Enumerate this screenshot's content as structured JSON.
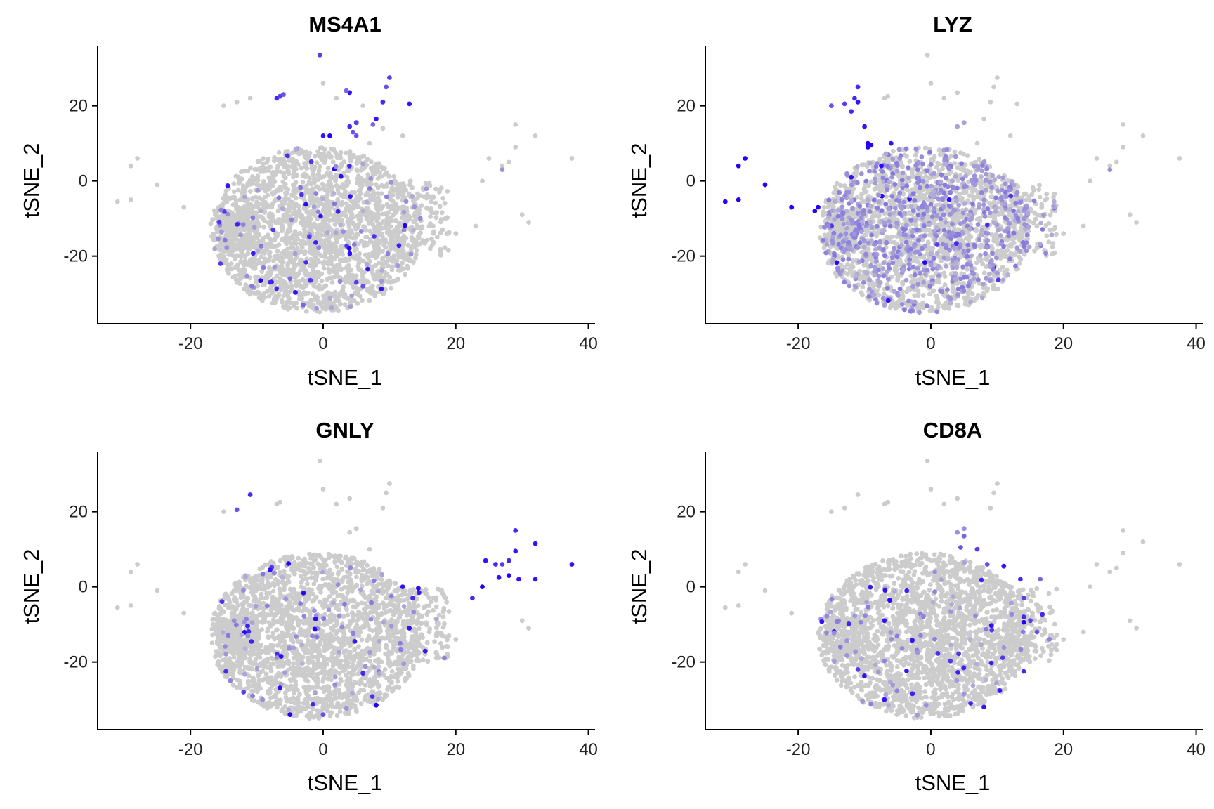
{
  "chart_data": [
    {
      "type": "scatter",
      "title": "MS4A1",
      "xlabel": "tSNE_1",
      "ylabel": "tSNE_2",
      "xlim": [
        -34,
        41
      ],
      "ylim": [
        -38,
        36
      ],
      "xticks": [
        -20,
        0,
        20,
        40
      ],
      "yticks": [
        -20,
        0,
        20
      ],
      "grid": false,
      "legend": "none",
      "colors": {
        "low": "#cccccc",
        "high": "#2200ff"
      },
      "cluster": {
        "center": [
          -1,
          -13
        ],
        "radius": [
          16,
          22
        ]
      },
      "outliers": [
        {
          "x": -31,
          "y": -5.5,
          "v": 0
        },
        {
          "x": -29,
          "y": -5,
          "v": 0
        },
        {
          "x": -29,
          "y": 4,
          "v": 0
        },
        {
          "x": -28,
          "y": 6,
          "v": 0
        },
        {
          "x": -25,
          "y": -1,
          "v": 0
        },
        {
          "x": -21,
          "y": -7,
          "v": 0
        },
        {
          "x": -15,
          "y": 20,
          "v": 0
        },
        {
          "x": -13,
          "y": 21,
          "v": 0
        },
        {
          "x": -11,
          "y": 22,
          "v": 0
        },
        {
          "x": -7,
          "y": 22,
          "v": 0.8
        },
        {
          "x": -6.5,
          "y": 22.5,
          "v": 0.7
        },
        {
          "x": -6,
          "y": 23,
          "v": 0.6
        },
        {
          "x": -0.5,
          "y": 33.5,
          "v": 0.7
        },
        {
          "x": 0,
          "y": 26,
          "v": 0
        },
        {
          "x": 2,
          "y": 22,
          "v": 0
        },
        {
          "x": 4,
          "y": 23.5,
          "v": 0.9
        },
        {
          "x": 3.5,
          "y": 24,
          "v": 0.5
        },
        {
          "x": 6,
          "y": 20,
          "v": 0
        },
        {
          "x": 10,
          "y": 27.5,
          "v": 0.7
        },
        {
          "x": 9.5,
          "y": 25,
          "v": 0.6
        },
        {
          "x": 13,
          "y": 20.5,
          "v": 0.9
        },
        {
          "x": 9,
          "y": 21,
          "v": 0.8
        },
        {
          "x": 8,
          "y": 16.5,
          "v": 0.9
        },
        {
          "x": 7.5,
          "y": 15,
          "v": 0.5
        },
        {
          "x": 5,
          "y": 15.5,
          "v": 0.7
        },
        {
          "x": 4,
          "y": 14.5,
          "v": 0.8
        },
        {
          "x": 4.5,
          "y": 13,
          "v": 0.6
        },
        {
          "x": 0,
          "y": 12,
          "v": 0.9
        },
        {
          "x": 1,
          "y": 12,
          "v": 1
        },
        {
          "x": 5,
          "y": 12,
          "v": 0.6
        },
        {
          "x": 7,
          "y": 10,
          "v": 0
        },
        {
          "x": 9,
          "y": 14,
          "v": 0
        },
        {
          "x": 12,
          "y": 12,
          "v": 0
        },
        {
          "x": 16,
          "y": -12,
          "v": 0
        },
        {
          "x": 18,
          "y": -13,
          "v": 0
        },
        {
          "x": 20,
          "y": -14,
          "v": 0
        },
        {
          "x": 23,
          "y": -12,
          "v": 0
        },
        {
          "x": 24,
          "y": 0,
          "v": 0
        },
        {
          "x": 25,
          "y": 6,
          "v": 0
        },
        {
          "x": 27,
          "y": 4,
          "v": 0
        },
        {
          "x": 28,
          "y": 5,
          "v": 0
        },
        {
          "x": 29,
          "y": 9,
          "v": 0
        },
        {
          "x": 29,
          "y": 15,
          "v": 0
        },
        {
          "x": 30,
          "y": -9,
          "v": 0
        },
        {
          "x": 31,
          "y": -11,
          "v": 0
        },
        {
          "x": 32,
          "y": 12,
          "v": 0
        },
        {
          "x": 37.5,
          "y": 6,
          "v": 0
        },
        {
          "x": 27,
          "y": 3,
          "v": 0.3
        },
        {
          "x": -8,
          "y": -27,
          "v": 0.8
        },
        {
          "x": 5,
          "y": -27,
          "v": 0.7
        },
        {
          "x": 6,
          "y": -28,
          "v": 0.6
        },
        {
          "x": -5,
          "y": -26,
          "v": 0.5
        },
        {
          "x": -3,
          "y": -33,
          "v": 0.5
        }
      ],
      "seed": 11,
      "hot_fraction": 0.012
    },
    {
      "type": "scatter",
      "title": "LYZ",
      "xlabel": "tSNE_1",
      "ylabel": "tSNE_2",
      "xlim": [
        -34,
        41
      ],
      "ylim": [
        -38,
        36
      ],
      "xticks": [
        -20,
        0,
        20,
        40
      ],
      "yticks": [
        -20,
        0,
        20
      ],
      "grid": false,
      "legend": "none",
      "colors": {
        "low": "#cccccc",
        "high": "#2200ff"
      },
      "cluster": {
        "center": [
          -1,
          -13
        ],
        "radius": [
          16,
          22
        ]
      },
      "outliers": [
        {
          "x": -31,
          "y": -5.5,
          "v": 1
        },
        {
          "x": -29,
          "y": -5,
          "v": 1
        },
        {
          "x": -29,
          "y": 4,
          "v": 1
        },
        {
          "x": -28,
          "y": 6,
          "v": 1
        },
        {
          "x": -25,
          "y": -1,
          "v": 1
        },
        {
          "x": -21,
          "y": -7,
          "v": 1
        },
        {
          "x": -17,
          "y": -7,
          "v": 1
        },
        {
          "x": -17.5,
          "y": -8,
          "v": 1
        },
        {
          "x": -15,
          "y": 20,
          "v": 0.6
        },
        {
          "x": -13,
          "y": 20.5,
          "v": 0.7
        },
        {
          "x": -12,
          "y": 18.5,
          "v": 0.8
        },
        {
          "x": -11.5,
          "y": 22,
          "v": 0.8
        },
        {
          "x": -11,
          "y": 25,
          "v": 0.8
        },
        {
          "x": -11,
          "y": 21,
          "v": 0.9
        },
        {
          "x": -10,
          "y": 14.5,
          "v": 0.9
        },
        {
          "x": -9.5,
          "y": 10,
          "v": 1
        },
        {
          "x": -9.5,
          "y": 9,
          "v": 1
        },
        {
          "x": -9,
          "y": 9.5,
          "v": 1
        },
        {
          "x": -6,
          "y": 10,
          "v": 0.9
        },
        {
          "x": -12,
          "y": 1,
          "v": 0.9
        },
        {
          "x": -7,
          "y": 22,
          "v": 0
        },
        {
          "x": -6.5,
          "y": 22.5,
          "v": 0
        },
        {
          "x": -0.5,
          "y": 33.5,
          "v": 0
        },
        {
          "x": 0,
          "y": 26,
          "v": 0
        },
        {
          "x": 2,
          "y": 22,
          "v": 0
        },
        {
          "x": 4,
          "y": 23.5,
          "v": 0
        },
        {
          "x": 10,
          "y": 27.5,
          "v": 0
        },
        {
          "x": 9.5,
          "y": 25,
          "v": 0
        },
        {
          "x": 13,
          "y": 20.5,
          "v": 0
        },
        {
          "x": 9,
          "y": 21,
          "v": 0
        },
        {
          "x": 8,
          "y": 16.5,
          "v": 0
        },
        {
          "x": 5,
          "y": 15.5,
          "v": 0.2
        },
        {
          "x": 4,
          "y": 14.5,
          "v": 0.2
        },
        {
          "x": 7,
          "y": 10,
          "v": 0
        },
        {
          "x": 12,
          "y": 12,
          "v": 0
        },
        {
          "x": 16,
          "y": -12,
          "v": 0
        },
        {
          "x": 18,
          "y": -13,
          "v": 0
        },
        {
          "x": 20,
          "y": -14,
          "v": 0
        },
        {
          "x": 23,
          "y": -12,
          "v": 0
        },
        {
          "x": 24,
          "y": 0,
          "v": 0
        },
        {
          "x": 25,
          "y": 6,
          "v": 0
        },
        {
          "x": 27,
          "y": 4,
          "v": 0
        },
        {
          "x": 28,
          "y": 5,
          "v": 0
        },
        {
          "x": 29,
          "y": 9,
          "v": 0
        },
        {
          "x": 29,
          "y": 15,
          "v": 0
        },
        {
          "x": 30,
          "y": -9,
          "v": 0
        },
        {
          "x": 31,
          "y": -11,
          "v": 0
        },
        {
          "x": 32,
          "y": 12,
          "v": 0
        },
        {
          "x": 37.5,
          "y": 6,
          "v": 0
        },
        {
          "x": 27,
          "y": 3,
          "v": 0.3
        }
      ],
      "seed": 23,
      "hot_fraction": 0.006,
      "warm_fraction": 0.28
    },
    {
      "type": "scatter",
      "title": "GNLY",
      "xlabel": "tSNE_1",
      "ylabel": "tSNE_2",
      "xlim": [
        -34,
        41
      ],
      "ylim": [
        -38,
        36
      ],
      "xticks": [
        -20,
        0,
        20,
        40
      ],
      "yticks": [
        -20,
        0,
        20
      ],
      "grid": false,
      "legend": "none",
      "colors": {
        "low": "#cccccc",
        "high": "#2200ff"
      },
      "cluster": {
        "center": [
          -1,
          -13
        ],
        "radius": [
          16,
          22
        ]
      },
      "outliers": [
        {
          "x": -31,
          "y": -5.5,
          "v": 0
        },
        {
          "x": -29,
          "y": -5,
          "v": 0
        },
        {
          "x": -29,
          "y": 4,
          "v": 0
        },
        {
          "x": -28,
          "y": 6,
          "v": 0
        },
        {
          "x": -25,
          "y": -1,
          "v": 0
        },
        {
          "x": -21,
          "y": -7,
          "v": 0
        },
        {
          "x": -15,
          "y": 20,
          "v": 0
        },
        {
          "x": -13,
          "y": 20.5,
          "v": 0.6
        },
        {
          "x": -11,
          "y": 24.5,
          "v": 0.8
        },
        {
          "x": -7,
          "y": 22,
          "v": 0
        },
        {
          "x": -6.5,
          "y": 22.5,
          "v": 0
        },
        {
          "x": -0.5,
          "y": 33.5,
          "v": 0
        },
        {
          "x": 0,
          "y": 26,
          "v": 0
        },
        {
          "x": 2,
          "y": 22,
          "v": 0
        },
        {
          "x": 4,
          "y": 23.5,
          "v": 0
        },
        {
          "x": 10,
          "y": 27.5,
          "v": 0
        },
        {
          "x": 9.5,
          "y": 25,
          "v": 0
        },
        {
          "x": 9,
          "y": 21,
          "v": 0
        },
        {
          "x": 5,
          "y": 15.5,
          "v": 0
        },
        {
          "x": 4,
          "y": 14.5,
          "v": 0
        },
        {
          "x": 7,
          "y": 10,
          "v": 0
        },
        {
          "x": -8,
          "y": 4.5,
          "v": 0.9
        },
        {
          "x": 12,
          "y": 0,
          "v": 0.9
        },
        {
          "x": 13.5,
          "y": -3,
          "v": 0.8
        },
        {
          "x": 13,
          "y": -11,
          "v": 0.9
        },
        {
          "x": 16,
          "y": -12,
          "v": 0
        },
        {
          "x": 18,
          "y": -13,
          "v": 0
        },
        {
          "x": 20,
          "y": -14,
          "v": 0
        },
        {
          "x": 22.5,
          "y": -3,
          "v": 0.8
        },
        {
          "x": 24,
          "y": 0,
          "v": 1
        },
        {
          "x": 24.5,
          "y": 7,
          "v": 0.9
        },
        {
          "x": 26,
          "y": 6,
          "v": 0.8
        },
        {
          "x": 26.5,
          "y": 2.5,
          "v": 0.9
        },
        {
          "x": 27,
          "y": 6,
          "v": 0.7
        },
        {
          "x": 28,
          "y": 7,
          "v": 0.8
        },
        {
          "x": 28,
          "y": 3,
          "v": 1
        },
        {
          "x": 29,
          "y": 9.5,
          "v": 0.9
        },
        {
          "x": 29,
          "y": 15,
          "v": 0.8
        },
        {
          "x": 29.5,
          "y": 2,
          "v": 0.9
        },
        {
          "x": 30,
          "y": -9,
          "v": 0
        },
        {
          "x": 31,
          "y": -11,
          "v": 0
        },
        {
          "x": 32,
          "y": 11.5,
          "v": 0.9
        },
        {
          "x": 32,
          "y": 2,
          "v": 0.9
        },
        {
          "x": 37.5,
          "y": 6,
          "v": 0.9
        },
        {
          "x": 6,
          "y": -23,
          "v": 0.8
        },
        {
          "x": -12,
          "y": -28,
          "v": 0.7
        },
        {
          "x": 8,
          "y": -31.5,
          "v": 1
        },
        {
          "x": 0,
          "y": -34,
          "v": 0.6
        },
        {
          "x": -5,
          "y": -34,
          "v": 1
        }
      ],
      "seed": 37,
      "hot_fraction": 0.008
    },
    {
      "type": "scatter",
      "title": "CD8A",
      "xlabel": "tSNE_1",
      "ylabel": "tSNE_2",
      "xlim": [
        -34,
        41
      ],
      "ylim": [
        -38,
        36
      ],
      "xticks": [
        -20,
        0,
        20,
        40
      ],
      "yticks": [
        -20,
        0,
        20
      ],
      "grid": false,
      "legend": "none",
      "colors": {
        "low": "#cccccc",
        "high": "#2200ff"
      },
      "cluster": {
        "center": [
          -1,
          -13
        ],
        "radius": [
          16,
          22
        ]
      },
      "outliers": [
        {
          "x": -31,
          "y": -5.5,
          "v": 0
        },
        {
          "x": -29,
          "y": -5,
          "v": 0
        },
        {
          "x": -29,
          "y": 4,
          "v": 0
        },
        {
          "x": -28,
          "y": 6,
          "v": 0
        },
        {
          "x": -25,
          "y": -1,
          "v": 0
        },
        {
          "x": -21,
          "y": -7,
          "v": 0
        },
        {
          "x": -15,
          "y": 20,
          "v": 0
        },
        {
          "x": -13,
          "y": 21,
          "v": 0
        },
        {
          "x": -11,
          "y": 24.5,
          "v": 0
        },
        {
          "x": -7,
          "y": 22,
          "v": 0
        },
        {
          "x": -6.5,
          "y": 22.5,
          "v": 0
        },
        {
          "x": -0.5,
          "y": 33.5,
          "v": 0
        },
        {
          "x": 0,
          "y": 26,
          "v": 0
        },
        {
          "x": 2,
          "y": 22,
          "v": 0
        },
        {
          "x": 4,
          "y": 23.5,
          "v": 0
        },
        {
          "x": 10,
          "y": 27.5,
          "v": 0
        },
        {
          "x": 9.5,
          "y": 25,
          "v": 0
        },
        {
          "x": 9,
          "y": 21,
          "v": 0
        },
        {
          "x": 5,
          "y": 15.5,
          "v": 0.3
        },
        {
          "x": 4,
          "y": 14.5,
          "v": 0.3
        },
        {
          "x": 5,
          "y": 13.5,
          "v": 0.5
        },
        {
          "x": 4.5,
          "y": 10.5,
          "v": 0.6
        },
        {
          "x": 7,
          "y": 10,
          "v": 0.7
        },
        {
          "x": 8.5,
          "y": 6,
          "v": 0.6
        },
        {
          "x": 11,
          "y": 5.5,
          "v": 0.9
        },
        {
          "x": 13.5,
          "y": 2,
          "v": 0.8
        },
        {
          "x": 14,
          "y": -3,
          "v": 0.7
        },
        {
          "x": 14,
          "y": -8,
          "v": 0.8
        },
        {
          "x": 15,
          "y": -9,
          "v": 0.7
        },
        {
          "x": 16,
          "y": -12,
          "v": 0.6
        },
        {
          "x": 16.5,
          "y": 2,
          "v": 0.5
        },
        {
          "x": 18,
          "y": -13,
          "v": 0
        },
        {
          "x": 20,
          "y": -14,
          "v": 0
        },
        {
          "x": 23,
          "y": -12,
          "v": 0
        },
        {
          "x": 24,
          "y": 0,
          "v": 0
        },
        {
          "x": 25,
          "y": 6,
          "v": 0
        },
        {
          "x": 27,
          "y": 4,
          "v": 0
        },
        {
          "x": 28,
          "y": 5,
          "v": 0
        },
        {
          "x": 29,
          "y": 9,
          "v": 0
        },
        {
          "x": 29,
          "y": 15,
          "v": 0
        },
        {
          "x": 30,
          "y": -9,
          "v": 0
        },
        {
          "x": 31,
          "y": -11,
          "v": 0
        },
        {
          "x": 32,
          "y": 12,
          "v": 0
        },
        {
          "x": 37.5,
          "y": 6,
          "v": 0
        },
        {
          "x": -7,
          "y": -9,
          "v": 0.9
        },
        {
          "x": -11,
          "y": -22,
          "v": 0.7
        },
        {
          "x": -7,
          "y": -30,
          "v": 0.9
        },
        {
          "x": 6,
          "y": -31,
          "v": 0.8
        },
        {
          "x": 8,
          "y": -32,
          "v": 0.9
        },
        {
          "x": 14,
          "y": -22.5,
          "v": 0.8
        }
      ],
      "seed": 53,
      "hot_fraction": 0.01
    }
  ]
}
